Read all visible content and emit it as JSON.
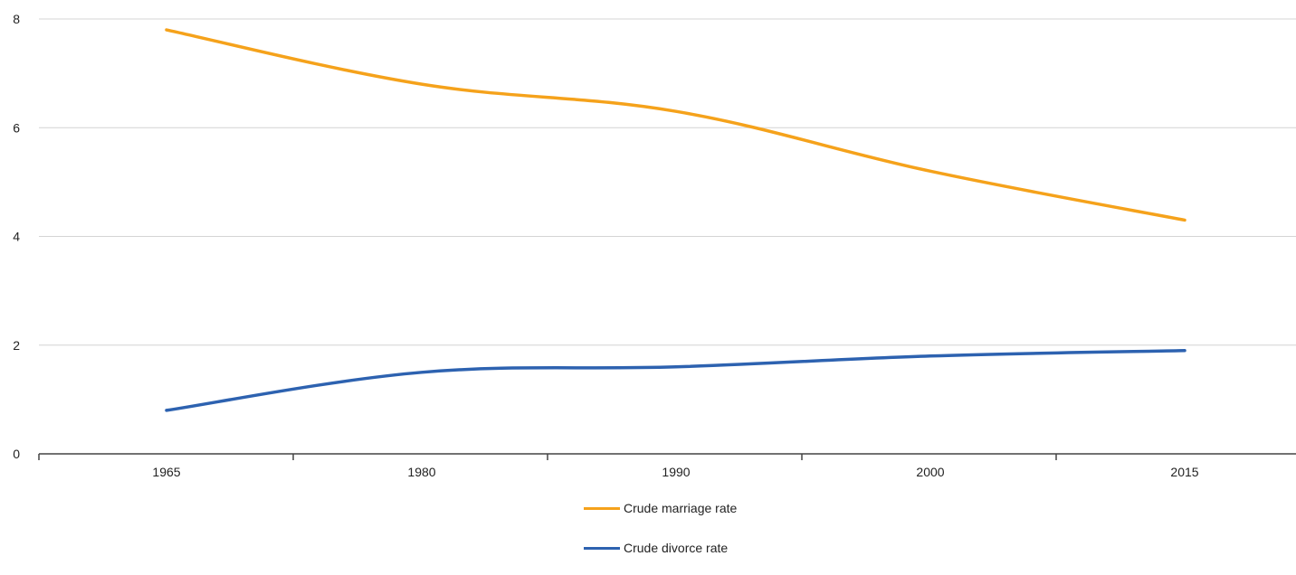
{
  "chart_data": {
    "type": "line",
    "title": "",
    "xlabel": "",
    "ylabel": "",
    "categories": [
      "1965",
      "1980",
      "1990",
      "2000",
      "2015"
    ],
    "x": [
      1965,
      1980,
      1990,
      2000,
      2015
    ],
    "ylim": [
      0,
      8
    ],
    "yticks": [
      "0",
      "2",
      "4",
      "6",
      "8"
    ],
    "grid": true,
    "legend_position": "bottom",
    "series": [
      {
        "name": "Crude marriage rate",
        "color": "#f5a21b",
        "values": [
          7.8,
          6.8,
          6.3,
          5.2,
          4.3
        ]
      },
      {
        "name": "Crude divorce rate",
        "color": "#2d62b0",
        "values": [
          0.8,
          1.5,
          1.6,
          1.8,
          1.9
        ]
      }
    ]
  }
}
